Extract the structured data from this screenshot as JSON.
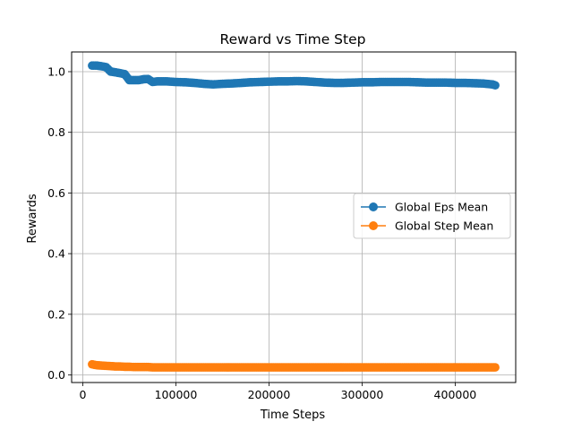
{
  "chart_data": {
    "type": "line",
    "title": "Reward vs Time Step",
    "xlabel": "Time Steps",
    "ylabel": "Rewards",
    "xlim": [
      -12000,
      465000
    ],
    "ylim": [
      -0.025,
      1.065
    ],
    "xticks": [
      0,
      100000,
      200000,
      300000,
      400000
    ],
    "xtick_labels": [
      "0",
      "100000",
      "200000",
      "300000",
      "400000"
    ],
    "yticks": [
      0.0,
      0.2,
      0.4,
      0.6,
      0.8,
      1.0
    ],
    "ytick_labels": [
      "0.0",
      "0.2",
      "0.4",
      "0.6",
      "0.8",
      "1.0"
    ],
    "grid": true,
    "legend_position": "center-right",
    "series": [
      {
        "name": "Global Eps Mean",
        "color": "#1f77b4",
        "marker": "circle",
        "x": [
          10000,
          15000,
          20000,
          25000,
          30000,
          35000,
          40000,
          45000,
          50000,
          55000,
          60000,
          65000,
          70000,
          75000,
          80000,
          90000,
          100000,
          110000,
          120000,
          130000,
          140000,
          150000,
          160000,
          170000,
          180000,
          190000,
          200000,
          210000,
          220000,
          230000,
          240000,
          250000,
          260000,
          270000,
          280000,
          290000,
          300000,
          310000,
          320000,
          330000,
          340000,
          350000,
          360000,
          370000,
          380000,
          390000,
          400000,
          410000,
          420000,
          430000,
          440000,
          443000
        ],
        "y": [
          1.02,
          1.02,
          1.018,
          1.015,
          1.0,
          0.998,
          0.995,
          0.992,
          0.972,
          0.972,
          0.972,
          0.975,
          0.976,
          0.966,
          0.968,
          0.968,
          0.966,
          0.965,
          0.963,
          0.96,
          0.958,
          0.96,
          0.961,
          0.963,
          0.965,
          0.966,
          0.967,
          0.968,
          0.968,
          0.969,
          0.968,
          0.966,
          0.964,
          0.963,
          0.963,
          0.964,
          0.965,
          0.965,
          0.966,
          0.966,
          0.966,
          0.966,
          0.965,
          0.964,
          0.964,
          0.964,
          0.963,
          0.963,
          0.962,
          0.961,
          0.958,
          0.955
        ]
      },
      {
        "name": "Global Step Mean",
        "color": "#ff7f0e",
        "marker": "circle",
        "x": [
          10000,
          15000,
          20000,
          25000,
          30000,
          35000,
          40000,
          45000,
          50000,
          55000,
          60000,
          65000,
          70000,
          75000,
          80000,
          90000,
          100000,
          110000,
          120000,
          130000,
          140000,
          150000,
          160000,
          170000,
          180000,
          190000,
          200000,
          210000,
          220000,
          230000,
          240000,
          250000,
          260000,
          270000,
          280000,
          290000,
          300000,
          310000,
          320000,
          330000,
          340000,
          350000,
          360000,
          370000,
          380000,
          390000,
          400000,
          410000,
          420000,
          430000,
          440000,
          443000
        ],
        "y": [
          0.035,
          0.032,
          0.031,
          0.03,
          0.029,
          0.028,
          0.028,
          0.027,
          0.027,
          0.026,
          0.026,
          0.026,
          0.026,
          0.025,
          0.025,
          0.025,
          0.025,
          0.025,
          0.025,
          0.025,
          0.025,
          0.025,
          0.025,
          0.025,
          0.025,
          0.025,
          0.025,
          0.025,
          0.025,
          0.025,
          0.025,
          0.025,
          0.025,
          0.025,
          0.025,
          0.025,
          0.025,
          0.025,
          0.025,
          0.025,
          0.025,
          0.025,
          0.025,
          0.025,
          0.025,
          0.025,
          0.025,
          0.025,
          0.025,
          0.025,
          0.025,
          0.025
        ]
      }
    ]
  }
}
